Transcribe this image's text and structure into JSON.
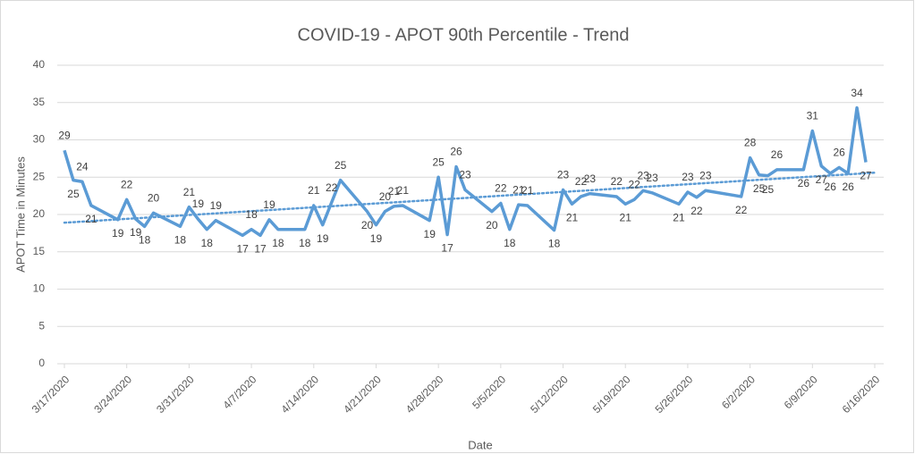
{
  "chart_data": {
    "type": "line",
    "title": "COVID-19 - APOT 90th Percentile - Trend",
    "x_label": "Date",
    "y_label": "APOT Time in Minutes",
    "xlim": [
      "3/17/2020",
      "6/16/2020"
    ],
    "xticks": [
      "3/17/2020",
      "3/24/2020",
      "3/31/2020",
      "4/7/2020",
      "4/14/2020",
      "4/21/2020",
      "4/28/2020",
      "5/5/2020",
      "5/12/2020",
      "5/19/2020",
      "5/26/2020",
      "6/2/2020",
      "6/9/2020",
      "6/16/2020"
    ],
    "ylim": [
      0,
      40
    ],
    "yticks": [
      0,
      5,
      10,
      15,
      20,
      25,
      30,
      35,
      40
    ],
    "grid": true,
    "x": [
      "3/17/2020",
      "3/18/2020",
      "3/19/2020",
      "3/20/2020",
      "3/23/2020",
      "3/24/2020",
      "3/25/2020",
      "3/26/2020",
      "3/27/2020",
      "3/30/2020",
      "3/31/2020",
      "4/1/2020",
      "4/2/2020",
      "4/3/2020",
      "4/6/2020",
      "4/7/2020",
      "4/8/2020",
      "4/9/2020",
      "4/10/2020",
      "4/13/2020",
      "4/14/2020",
      "4/15/2020",
      "4/16/2020",
      "4/17/2020",
      "4/20/2020",
      "4/21/2020",
      "4/22/2020",
      "4/23/2020",
      "4/24/2020",
      "4/27/2020",
      "4/28/2020",
      "4/29/2020",
      "4/30/2020",
      "5/1/2020",
      "5/4/2020",
      "5/5/2020",
      "5/6/2020",
      "5/7/2020",
      "5/8/2020",
      "5/11/2020",
      "5/12/2020",
      "5/13/2020",
      "5/14/2020",
      "5/15/2020",
      "5/18/2020",
      "5/19/2020",
      "5/20/2020",
      "5/21/2020",
      "5/22/2020",
      "5/25/2020",
      "5/26/2020",
      "5/27/2020",
      "5/28/2020",
      "6/1/2020",
      "6/2/2020",
      "6/3/2020",
      "6/4/2020",
      "6/5/2020",
      "6/8/2020",
      "6/9/2020",
      "6/10/2020",
      "6/11/2020",
      "6/12/2020",
      "6/13/2020",
      "6/14/2020",
      "6/15/2020"
    ],
    "series": [
      {
        "color": "#5b9bd5",
        "values": [
          28.6,
          24.6,
          24.4,
          21.2,
          19.3,
          22.0,
          19.4,
          18.4,
          20.2,
          18.4,
          21.0,
          19.4,
          18.0,
          19.2,
          17.2,
          18.0,
          17.2,
          19.3,
          18.0,
          18.0,
          21.2,
          18.6,
          21.6,
          24.6,
          20.4,
          18.6,
          20.4,
          21.1,
          21.2,
          19.2,
          25.0,
          17.3,
          26.4,
          23.3,
          20.4,
          21.5,
          18.0,
          21.3,
          21.2,
          17.9,
          23.3,
          21.4,
          22.4,
          22.8,
          22.4,
          21.4,
          22.0,
          23.2,
          22.9,
          21.4,
          23.0,
          22.3,
          23.2,
          22.4,
          27.6,
          25.3,
          25.2,
          26.0,
          26.0,
          31.2,
          26.5,
          25.5,
          26.3,
          25.5,
          34.3,
          27.0
        ],
        "value_labels": [
          "29",
          "25",
          "24",
          "21",
          "19",
          "22",
          "19",
          "18",
          "20",
          "18",
          "21",
          "19",
          "18",
          "19",
          "17",
          "18",
          "17",
          "19",
          "18",
          "18",
          "21",
          "19",
          "22",
          "25",
          "20",
          "19",
          "20",
          "21",
          "21",
          "19",
          "25",
          "17",
          "26",
          "23",
          "20",
          "22",
          "18",
          "21",
          "21",
          "18",
          "23",
          "21",
          "22",
          "23",
          "22",
          "21",
          "22",
          "23",
          "23",
          "21",
          "23",
          "22",
          "23",
          "22",
          "28",
          "25",
          "25",
          "26",
          "26",
          "31",
          "27",
          "26",
          "26",
          "26",
          "34",
          "27"
        ]
      }
    ],
    "trendline": {
      "x": [
        "3/17/2020",
        "6/16/2020"
      ],
      "values": [
        18.9,
        25.6
      ],
      "color": "#5b9bd5",
      "style": "dotted"
    }
  }
}
